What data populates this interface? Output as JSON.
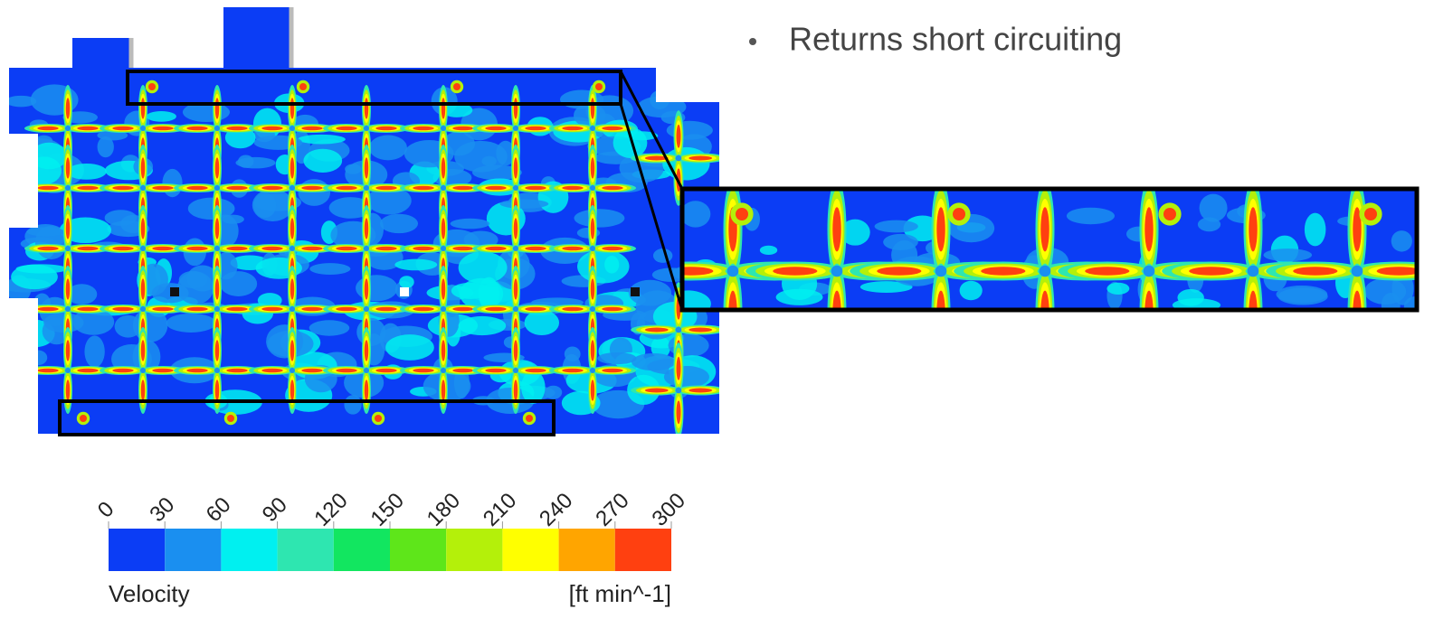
{
  "bullets": [
    "Returns short circuiting"
  ],
  "colorbar": {
    "ticks": [
      0,
      30,
      60,
      90,
      120,
      150,
      180,
      210,
      240,
      270,
      300
    ],
    "colors": [
      "#0b3df5",
      "#1a8ff0",
      "#00f0f0",
      "#2ee6b0",
      "#12e660",
      "#5ee61a",
      "#b4f00a",
      "#ffff00",
      "#ffa500",
      "#ff4010"
    ],
    "label": "Velocity",
    "units": "[ft min^-1]"
  }
}
